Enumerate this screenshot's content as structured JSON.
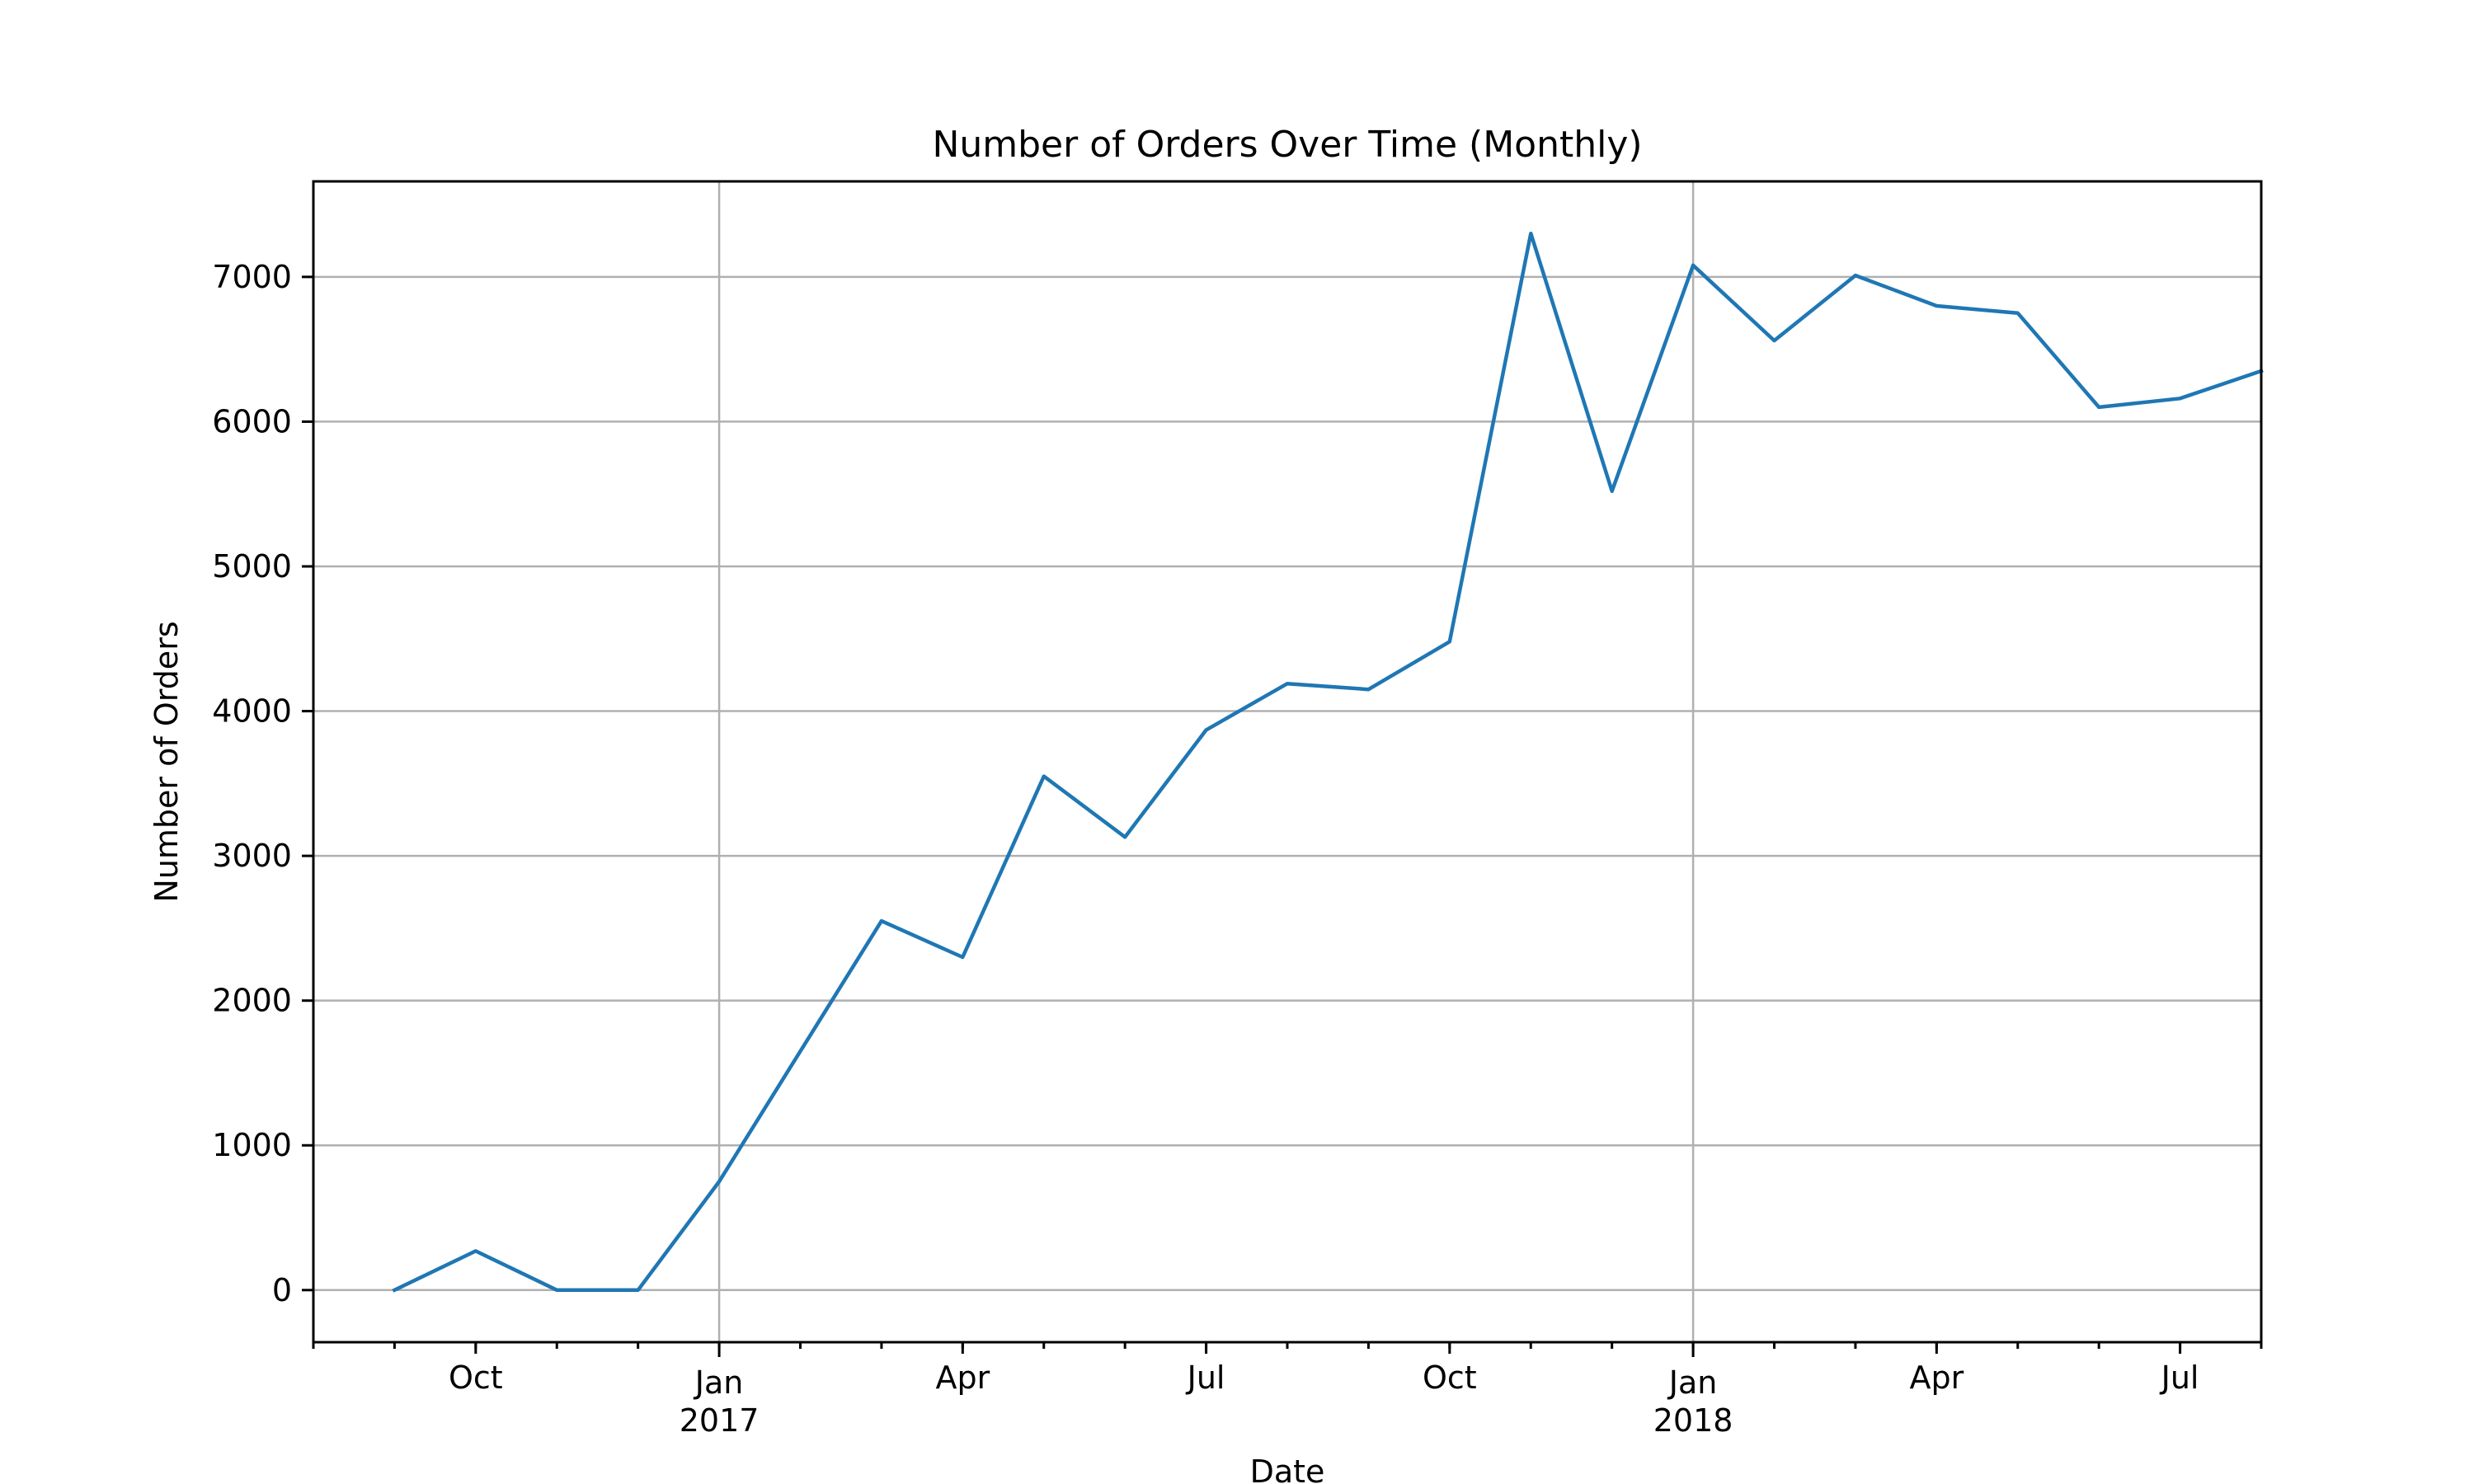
{
  "chart_data": {
    "type": "line",
    "title": "Number of Orders Over Time (Monthly)",
    "xlabel": "Date",
    "ylabel": "Number of Orders",
    "ylim": [
      -360,
      7660
    ],
    "xlim": [
      "2016-08",
      "2018-08"
    ],
    "x_tick_labels": [
      {
        "month": "2016-10",
        "label": "Oct"
      },
      {
        "month": "2017-01",
        "label": "Jan",
        "year": "2017"
      },
      {
        "month": "2017-04",
        "label": "Apr"
      },
      {
        "month": "2017-07",
        "label": "Jul"
      },
      {
        "month": "2017-10",
        "label": "Oct"
      },
      {
        "month": "2018-01",
        "label": "Jan",
        "year": "2018"
      },
      {
        "month": "2018-04",
        "label": "Apr"
      },
      {
        "month": "2018-07",
        "label": "Jul"
      }
    ],
    "y_ticks": [
      0,
      1000,
      2000,
      3000,
      4000,
      5000,
      6000,
      7000
    ],
    "grid": true,
    "series": [
      {
        "color": "#1f77b4",
        "x": [
          "2016-09",
          "2016-10",
          "2016-11",
          "2016-12",
          "2017-01",
          "2017-02",
          "2017-03",
          "2017-04",
          "2017-05",
          "2017-06",
          "2017-07",
          "2017-08",
          "2017-09",
          "2017-10",
          "2017-11",
          "2017-12",
          "2018-01",
          "2018-02",
          "2018-03",
          "2018-04",
          "2018-05",
          "2018-06",
          "2018-07",
          "2018-08"
        ],
        "values": [
          0,
          270,
          0,
          0,
          750,
          1650,
          2550,
          2300,
          3550,
          3130,
          3870,
          4190,
          4150,
          4480,
          7300,
          5520,
          7080,
          6560,
          7010,
          6800,
          6750,
          6100,
          6160,
          6350
        ]
      }
    ]
  }
}
